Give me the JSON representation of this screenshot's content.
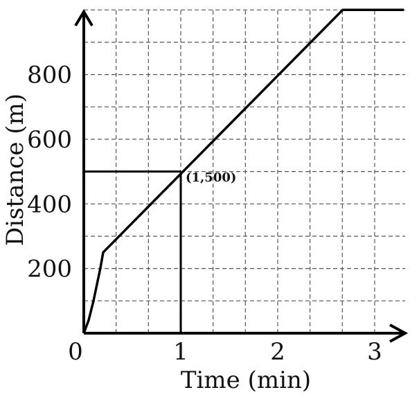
{
  "chart_data": {
    "type": "line",
    "title": "",
    "xlabel": "Time (min)",
    "ylabel": "Distance (m)",
    "x_ticks": [
      "0",
      "1",
      "2",
      "3"
    ],
    "y_ticks": [
      "200",
      "400",
      "600",
      "800"
    ],
    "xlim": [
      0,
      3.3
    ],
    "ylim": [
      0,
      1000
    ],
    "grid": true,
    "grid_style": "dashed",
    "grid_step_x": 0.3333,
    "grid_step_y": 100,
    "series": [
      {
        "x": [
          0,
          0.05,
          0.1,
          0.17,
          0.2,
          2.67,
          3.3
        ],
        "y": [
          0,
          40,
          100,
          200,
          250,
          1000,
          1000
        ]
      }
    ],
    "highlight_point": {
      "x": 1,
      "y": 500,
      "label": "(1,500)"
    },
    "colors": {
      "line": "#000000",
      "grid": "#555555",
      "axes": "#000000"
    }
  }
}
